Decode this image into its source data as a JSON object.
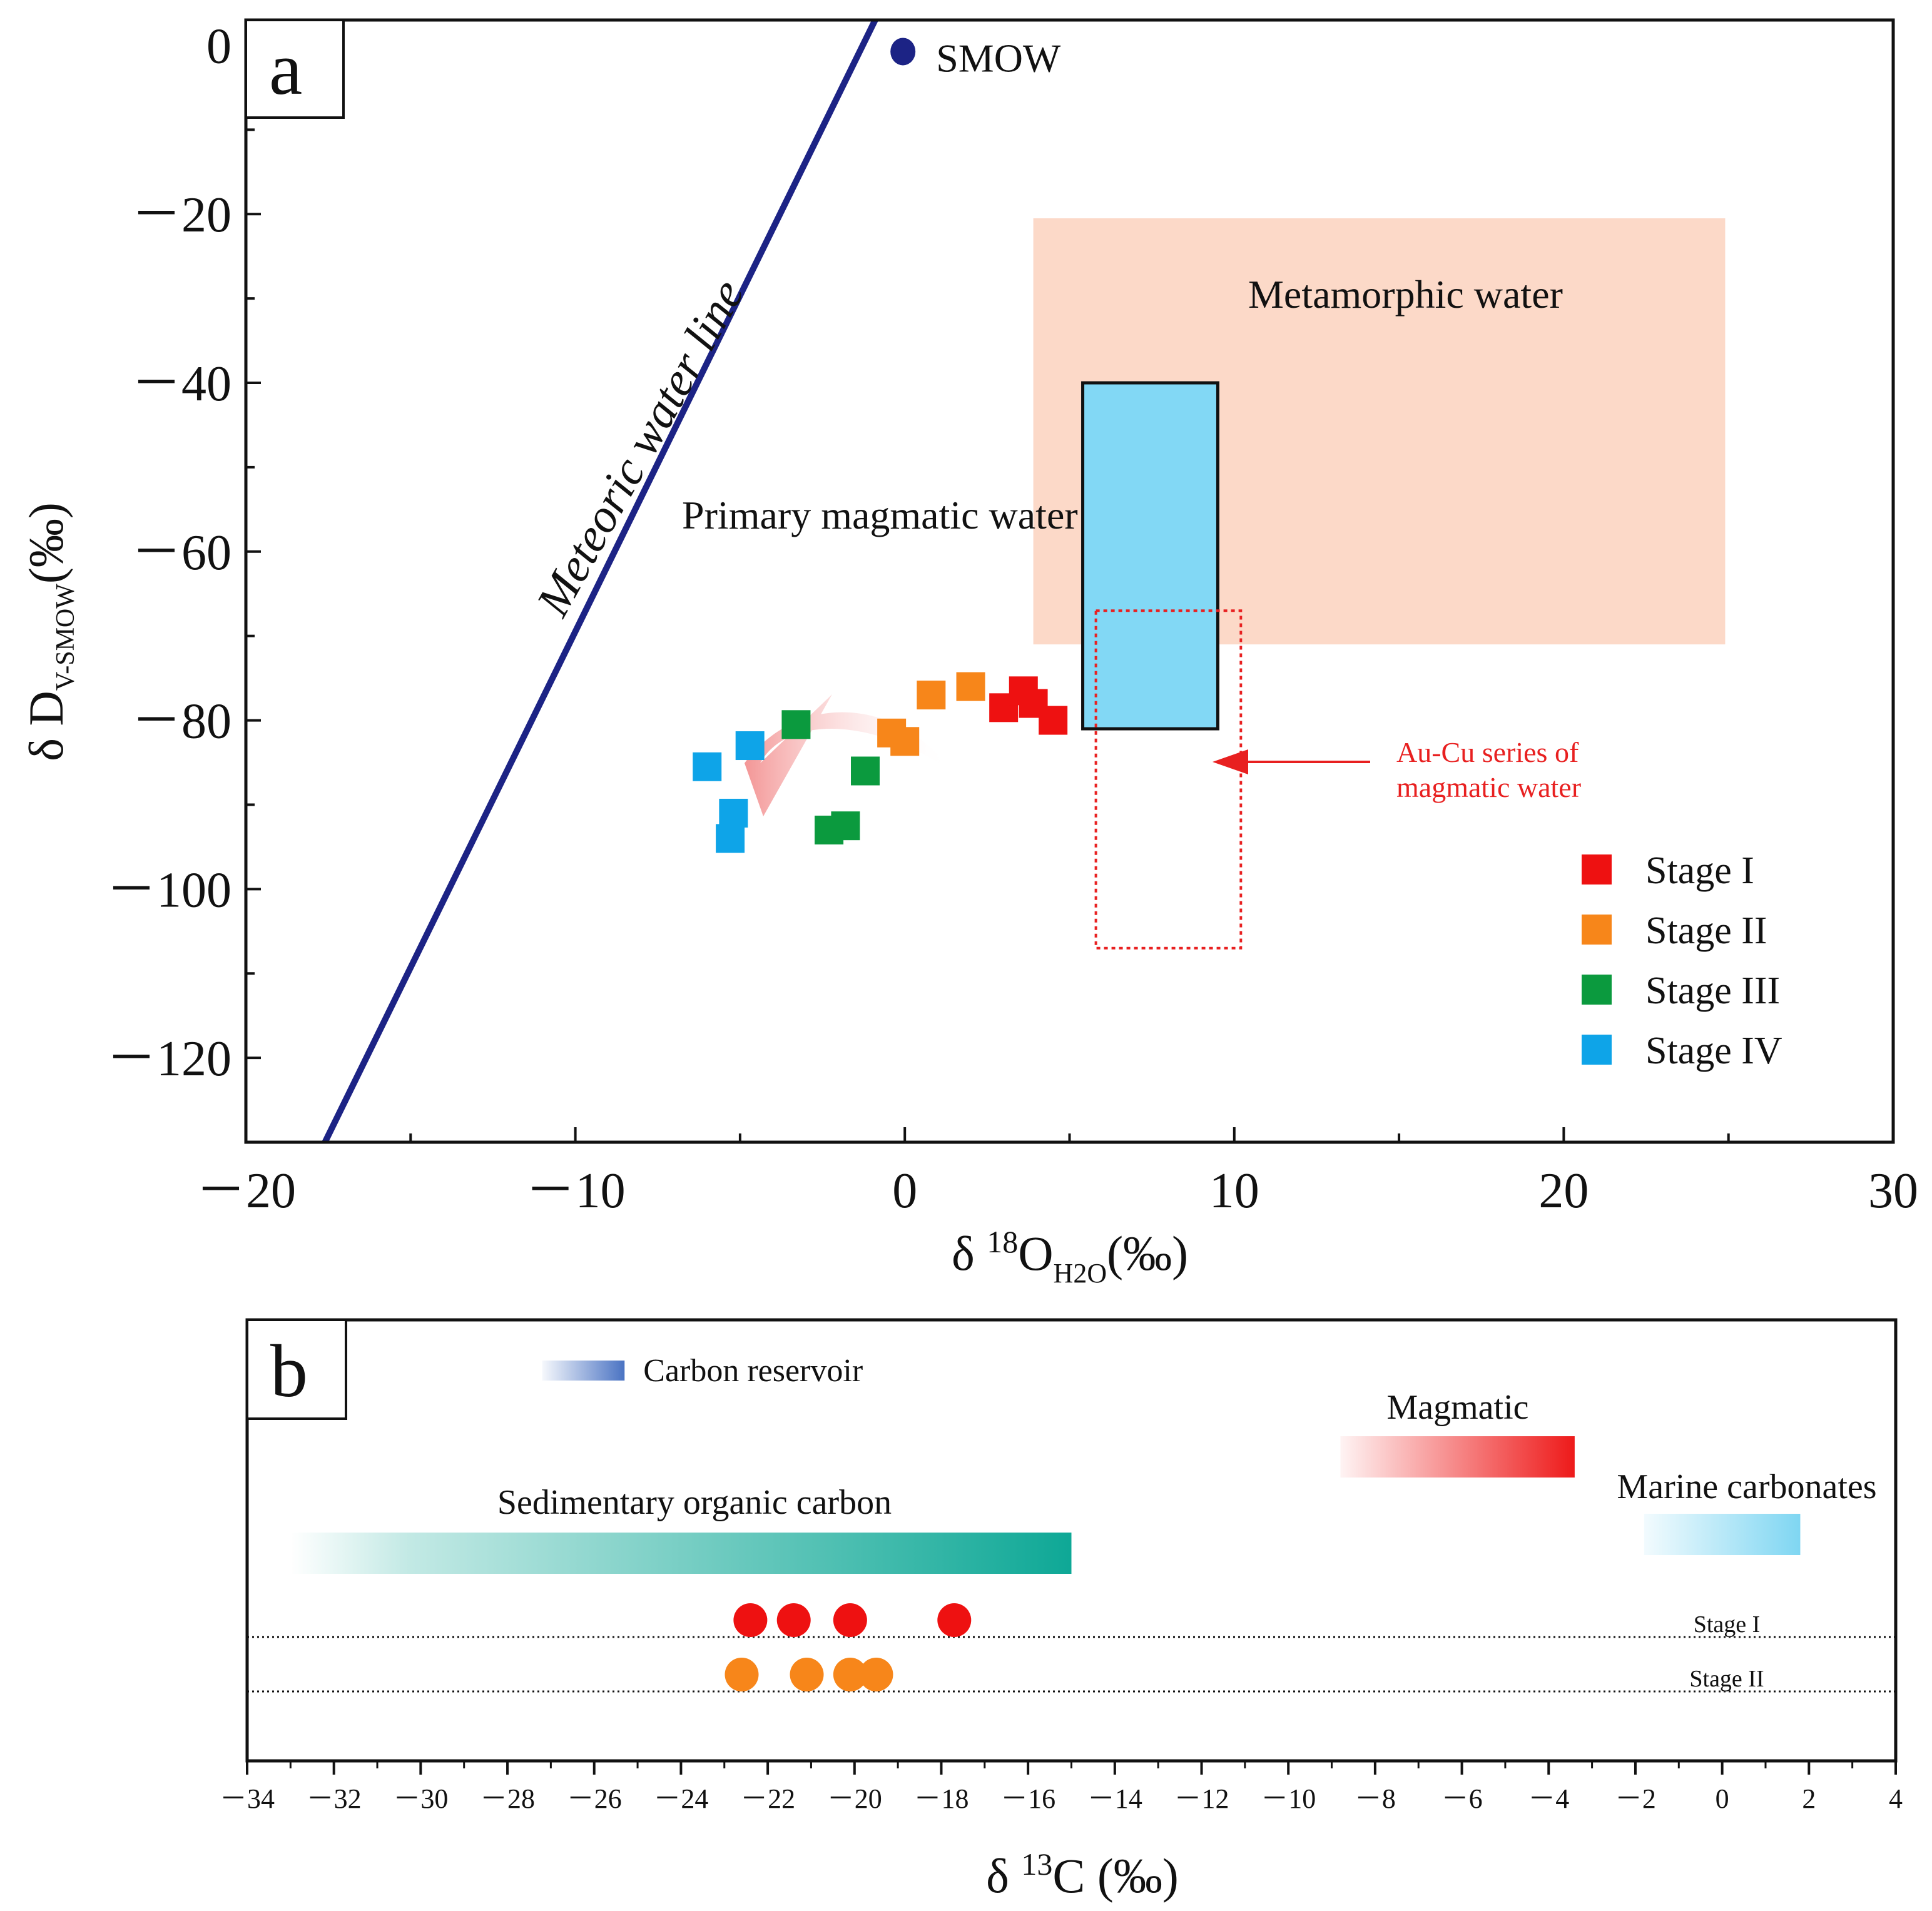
{
  "colors": {
    "stage1": "#ee1111",
    "stage2": "#f7861a",
    "stage3": "#0b9a3e",
    "stage4": "#0ea4e8",
    "meteoric_line": "#1c2385",
    "smow": "#1c2385",
    "metamorphic_fill": "#fcd9c8",
    "primary_fill": "#82d8f5",
    "au_cu_outline": "#e82020",
    "sed_organic": "#0ea896",
    "magmatic_bar": "#ee1a1a",
    "marine_bar": "#7fd6f2",
    "carbon_reservoir": "#4a73c3"
  },
  "chart_data": [
    {
      "panel": "a",
      "type": "scatter",
      "panel_label": "a",
      "xlabel": {
        "prefix": "δ ",
        "sup": "18",
        "main": "O",
        "sub": "H2O",
        "suffix": "(‰)"
      },
      "ylabel": {
        "prefix": "δ D",
        "sub": "V-SMOW",
        "suffix": "(‰)"
      },
      "xlim": [
        -20,
        30
      ],
      "ylim": [
        -130,
        3
      ],
      "xticks": [
        {
          "value": -20,
          "label": "－20"
        },
        {
          "value": -10,
          "label": "－10"
        },
        {
          "value": 0,
          "label": "0"
        },
        {
          "value": 10,
          "label": "10"
        },
        {
          "value": 20,
          "label": "20"
        },
        {
          "value": 30,
          "label": "30"
        }
      ],
      "yticks": [
        {
          "value": 0,
          "label": "0"
        },
        {
          "value": -20,
          "label": "－20"
        },
        {
          "value": -40,
          "label": "－40"
        },
        {
          "value": -60,
          "label": "－60"
        },
        {
          "value": -80,
          "label": "－80"
        },
        {
          "value": -100,
          "label": "－100"
        },
        {
          "value": -120,
          "label": "－120"
        }
      ],
      "meteoric_water_line": {
        "label": "Meteoric water line",
        "x1": -17.6,
        "y1": -130,
        "x2": -0.9,
        "y2": 3
      },
      "smow": {
        "label": "SMOW",
        "x": 0,
        "y": 0
      },
      "regions": [
        {
          "name": "metamorphic-water",
          "label": "Metamorphic water",
          "x": [
            3.9,
            24.9
          ],
          "y": [
            -71,
            -20.5
          ]
        },
        {
          "name": "primary-magmatic-water",
          "label": "Primary magmatic water",
          "x": [
            5.4,
            9.5
          ],
          "y": [
            -81,
            -40
          ]
        },
        {
          "name": "au-cu-magmatic-water",
          "label": "Au-Cu series of\nmagmatic water",
          "x": [
            5.8,
            10.2
          ],
          "y": [
            -107,
            -67
          ]
        }
      ],
      "series": [
        {
          "name": "Stage I",
          "color_key": "stage1",
          "points": [
            [
              3.0,
              -78.5
            ],
            [
              3.6,
              -76.5
            ],
            [
              3.9,
              -78
            ],
            [
              4.5,
              -80
            ]
          ]
        },
        {
          "name": "Stage II",
          "color_key": "stage2",
          "points": [
            [
              -0.4,
              -81.5
            ],
            [
              0.0,
              -82.5
            ],
            [
              0.8,
              -77
            ],
            [
              2.0,
              -76
            ]
          ]
        },
        {
          "name": "Stage III",
          "color_key": "stage3",
          "points": [
            [
              -3.3,
              -80.5
            ],
            [
              -2.3,
              -93
            ],
            [
              -1.8,
              -92.5
            ],
            [
              -1.2,
              -86
            ]
          ]
        },
        {
          "name": "Stage IV",
          "color_key": "stage4",
          "points": [
            [
              -6.0,
              -85.5
            ],
            [
              -4.7,
              -83
            ],
            [
              -5.2,
              -91
            ],
            [
              -5.3,
              -94
            ]
          ]
        }
      ]
    },
    {
      "panel": "b",
      "type": "range-bars",
      "panel_label": "b",
      "xlabel": {
        "prefix": "δ ",
        "sup": "13",
        "main": "C",
        "suffix": " (‰)"
      },
      "xlim": [
        -34,
        4
      ],
      "xticks": [
        {
          "value": -34,
          "label": "－34"
        },
        {
          "value": -32,
          "label": "－32"
        },
        {
          "value": -30,
          "label": "－30"
        },
        {
          "value": -28,
          "label": "－28"
        },
        {
          "value": -26,
          "label": "－26"
        },
        {
          "value": -24,
          "label": "－24"
        },
        {
          "value": -22,
          "label": "－22"
        },
        {
          "value": -20,
          "label": "－20"
        },
        {
          "value": -18,
          "label": "－18"
        },
        {
          "value": -16,
          "label": "－16"
        },
        {
          "value": -14,
          "label": "－14"
        },
        {
          "value": -12,
          "label": "－12"
        },
        {
          "value": -10,
          "label": "－10"
        },
        {
          "value": -8,
          "label": "－8"
        },
        {
          "value": -6,
          "label": "－6"
        },
        {
          "value": -4,
          "label": "－4"
        },
        {
          "value": -2,
          "label": "－2"
        },
        {
          "value": 0,
          "label": "0"
        },
        {
          "value": 2,
          "label": "2"
        },
        {
          "value": 4,
          "label": "4"
        }
      ],
      "reservoirs": [
        {
          "name": "carbon-reservoir",
          "label": "Carbon reservoir",
          "range": [
            -27.2,
            -25.3
          ],
          "legend_key": true,
          "color_key": "carbon_reservoir"
        },
        {
          "name": "sedimentary-organic-carbon",
          "label": "Sedimentary organic carbon",
          "range": [
            -33,
            -15
          ],
          "color_key": "sed_organic"
        },
        {
          "name": "magmatic",
          "label": "Magmatic",
          "range": [
            -8.8,
            -3.4
          ],
          "color_key": "magmatic_bar"
        },
        {
          "name": "marine-carbonates",
          "label": "Marine carbonates",
          "range": [
            -1.8,
            1.8
          ],
          "color_key": "marine_bar"
        }
      ],
      "series": [
        {
          "name": "Stage I",
          "label": "Stage I",
          "color_key": "stage1",
          "values": [
            -22.4,
            -21.4,
            -20.1,
            -17.7
          ]
        },
        {
          "name": "Stage II",
          "label": "Stage II",
          "color_key": "stage2",
          "values": [
            -22.6,
            -21.1,
            -20.1,
            -19.5
          ]
        }
      ]
    }
  ]
}
